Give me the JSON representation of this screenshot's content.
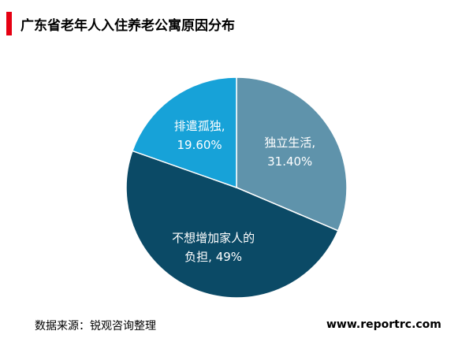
{
  "chart_data": {
    "type": "pie",
    "title": "广东省老年人入住养老公寓原因分布",
    "categories": [
      "独立生活,",
      "不想增加家人的负担,",
      "排遣孤独,"
    ],
    "values": [
      31.4,
      49,
      19.6
    ],
    "value_labels": [
      "31.40%",
      "49%",
      "19.60%"
    ],
    "colors": [
      "#5f93ab",
      "#0b4a66",
      "#17a2d8"
    ]
  },
  "footer": {
    "source": "数据来源：锐观咨询整理",
    "website": "www.reportrc.com"
  }
}
